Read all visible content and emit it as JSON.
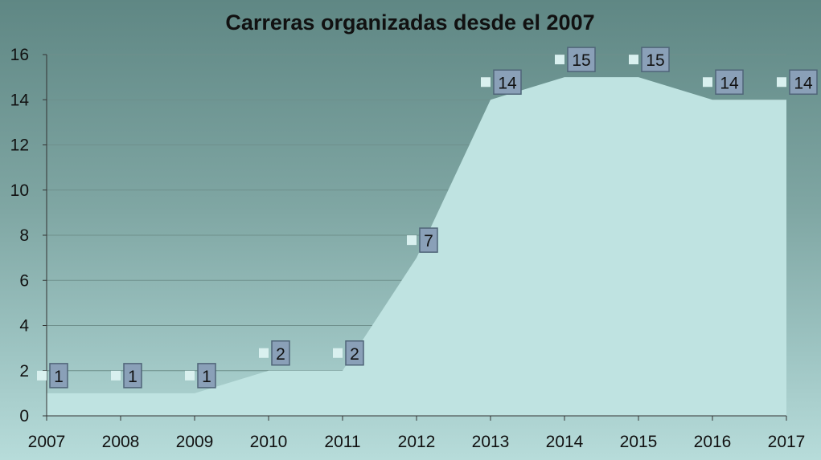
{
  "chart_data": {
    "type": "area",
    "title": "Carreras organizadas desde el 2007",
    "categories": [
      "2007",
      "2008",
      "2009",
      "2010",
      "2011",
      "2012",
      "2013",
      "2014",
      "2015",
      "2016",
      "2017"
    ],
    "values": [
      1,
      1,
      1,
      2,
      2,
      7,
      14,
      15,
      15,
      14,
      14
    ],
    "data_labels": [
      "1",
      "1",
      "1",
      "2",
      "2",
      "7",
      "14",
      "15",
      "15",
      "14",
      "14"
    ],
    "ylim": [
      0,
      16
    ],
    "yticks": [
      "0",
      "2",
      "4",
      "6",
      "8",
      "10",
      "12",
      "14",
      "16"
    ],
    "ytick_values": [
      0,
      2,
      4,
      6,
      8,
      10,
      12,
      14,
      16
    ],
    "grid": "horizontal",
    "colors": {
      "area_fill": "#bfe3e1",
      "gridline": "#6e8f8c",
      "label_box": "#8aa0b8",
      "label_border": "#4f6478",
      "marker": "#d9f0ef"
    }
  }
}
